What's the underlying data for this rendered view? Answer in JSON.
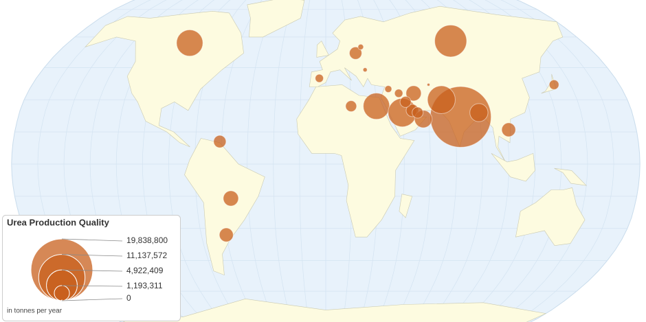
{
  "chart_data": {
    "type": "bubble-map",
    "title": "Urea Production Quality",
    "note": "in tonnes per year",
    "color": "#c8601e",
    "bubbles": [
      {
        "lon": 79,
        "lat": 22,
        "value": 19200000
      },
      {
        "lon": 88,
        "lat": 58,
        "value": 5300000
      },
      {
        "lon": -95,
        "lat": 57,
        "value": 3600000
      },
      {
        "lon": 30,
        "lat": 27,
        "value": 3600000
      },
      {
        "lon": 45,
        "lat": 24,
        "value": 4200000
      },
      {
        "lon": 69,
        "lat": 30,
        "value": 4000000
      },
      {
        "lon": 53,
        "lat": 33,
        "value": 1200000
      },
      {
        "lon": 51,
        "lat": 25,
        "value": 800000
      },
      {
        "lon": 57,
        "lat": 21,
        "value": 1600000
      },
      {
        "lon": 54,
        "lat": 24,
        "value": 630000
      },
      {
        "lon": 47.5,
        "lat": 29,
        "value": 630000
      },
      {
        "lon": 44,
        "lat": 33,
        "value": 350000
      },
      {
        "lon": 38,
        "lat": 35,
        "value": 250000
      },
      {
        "lon": 90,
        "lat": 24,
        "value": 1700000
      },
      {
        "lon": 106,
        "lat": 16,
        "value": 1000000
      },
      {
        "lon": 140,
        "lat": 37,
        "value": 480000
      },
      {
        "lon": -61,
        "lat": 10.5,
        "value": 800000
      },
      {
        "lon": -55,
        "lat": -16,
        "value": 1200000
      },
      {
        "lon": -60,
        "lat": -33,
        "value": 1000000
      },
      {
        "lon": -4,
        "lat": 40,
        "value": 350000
      },
      {
        "lon": 20,
        "lat": 52,
        "value": 800000
      },
      {
        "lon": 24,
        "lat": 55,
        "value": 160000
      },
      {
        "lon": 25,
        "lat": 44,
        "value": 90000
      },
      {
        "lon": 15,
        "lat": 27,
        "value": 630000
      },
      {
        "lon": 63,
        "lat": 37,
        "value": 40000
      }
    ],
    "legend": [
      {
        "value": 19838800,
        "label": "19,838,800"
      },
      {
        "value": 11137572,
        "label": "11,137,572"
      },
      {
        "value": 4922409,
        "label": "4,922,409"
      },
      {
        "value": 1193311,
        "label": "1,193,311"
      },
      0
    ]
  }
}
